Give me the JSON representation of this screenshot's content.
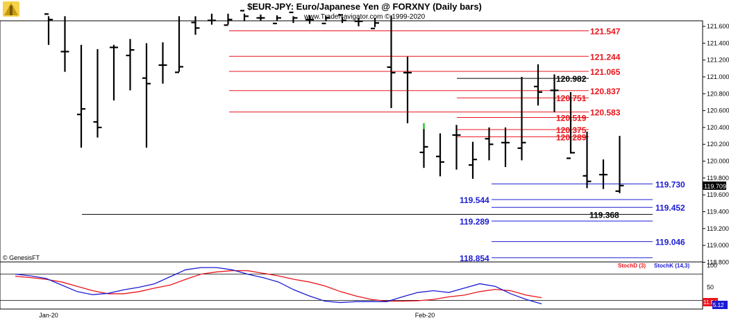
{
  "header": {
    "title": "$EUR-JPY:  Euro/Japanese Yen @ FORXNY  (Daily bars)",
    "subtitle": "www.TradeNavigator.com © 1999-2020"
  },
  "watermark": "© GenesisFT",
  "chart_data": [
    {
      "type": "ohlc",
      "title": "$EUR-JPY:  Euro/Japanese Yen @ FORXNY  (Daily bars)",
      "ylim": [
        118.854,
        121.7
      ],
      "y_ticks": [
        "121.600",
        "121.400",
        "121.200",
        "121.000",
        "120.800",
        "120.600",
        "120.400",
        "120.200",
        "120.000",
        "119.800",
        "119.600",
        "119.400",
        "119.200",
        "119.000",
        "118.800"
      ],
      "x_ticks": [
        "Jan-20",
        "Feb-20"
      ],
      "last_price": "119.709",
      "bars": [
        {
          "h": 121.72,
          "l": 121.38,
          "c": 121.68
        },
        {
          "h": 121.72,
          "l": 121.06,
          "c": 121.3
        },
        {
          "h": 121.38,
          "l": 120.16,
          "c": 120.62
        },
        {
          "h": 121.33,
          "l": 120.28,
          "c": 120.4
        },
        {
          "h": 121.38,
          "l": 120.72,
          "c": 121.35
        },
        {
          "h": 121.45,
          "l": 120.84,
          "c": 121.32
        },
        {
          "h": 121.4,
          "l": 120.16,
          "c": 120.92
        },
        {
          "h": 121.41,
          "l": 120.92,
          "c": 121.14
        },
        {
          "h": 121.72,
          "l": 121.06,
          "c": 121.12
        },
        {
          "h": 121.72,
          "l": 121.5,
          "c": 121.58
        },
        {
          "h": 121.75,
          "l": 121.62,
          "c": 121.67
        },
        {
          "h": 121.75,
          "l": 121.62,
          "c": 121.68
        },
        {
          "h": 121.75,
          "l": 121.66,
          "c": 121.72
        },
        {
          "h": 121.74,
          "l": 121.67,
          "c": 121.7
        },
        {
          "h": 121.73,
          "l": 121.67,
          "c": 121.7
        },
        {
          "h": 121.72,
          "l": 121.64,
          "c": 121.7
        },
        {
          "h": 121.73,
          "l": 121.63,
          "c": 121.68
        },
        {
          "h": 121.72,
          "l": 121.66,
          "c": 121.7
        },
        {
          "h": 121.71,
          "l": 121.64,
          "c": 121.67
        },
        {
          "h": 121.7,
          "l": 121.6,
          "c": 121.66
        },
        {
          "h": 121.7,
          "l": 121.59,
          "c": 121.64
        },
        {
          "h": 121.73,
          "l": 120.63,
          "c": 121.05
        },
        {
          "h": 121.24,
          "l": 120.45,
          "c": 121.05
        },
        {
          "h": 120.45,
          "l": 119.92,
          "c": 120.17
        },
        {
          "h": 120.33,
          "l": 119.82,
          "c": 119.99
        },
        {
          "h": 120.43,
          "l": 119.9,
          "c": 120.31
        },
        {
          "h": 120.23,
          "l": 119.79,
          "c": 120.02
        },
        {
          "h": 120.4,
          "l": 120.01,
          "c": 120.2
        },
        {
          "h": 120.4,
          "l": 119.93,
          "c": 120.22
        },
        {
          "h": 121.0,
          "l": 120.01,
          "c": 120.22
        },
        {
          "h": 121.15,
          "l": 120.66,
          "c": 120.82
        },
        {
          "h": 121.03,
          "l": 120.58,
          "c": 120.84
        },
        {
          "h": 120.82,
          "l": 120.09,
          "c": 120.1
        },
        {
          "h": 120.35,
          "l": 119.68,
          "c": 119.76
        },
        {
          "h": 120.02,
          "l": 119.67,
          "c": 119.84
        },
        {
          "h": 120.3,
          "l": 119.62,
          "c": 119.71
        }
      ],
      "special_bar": {
        "x": 23,
        "h": 120.45,
        "l": 120.38
      },
      "levels": [
        {
          "value": "121.547",
          "v": 121.547,
          "color": "#e8141b",
          "line_color": "#e8141b",
          "from": 12,
          "to": 34
        },
        {
          "value": "121.244",
          "v": 121.244,
          "color": "#e8141b",
          "line_color": "#e8141b",
          "from": 12,
          "to": 34
        },
        {
          "value": "121.065",
          "v": 121.065,
          "color": "#e8141b",
          "line_color": "#e8141b",
          "from": 12,
          "to": 34
        },
        {
          "value": "120.982",
          "v": 120.982,
          "color": "#000000",
          "line_color": "#000000",
          "from": 26,
          "to": 34
        },
        {
          "value": "120.837",
          "v": 120.837,
          "color": "#e8141b",
          "line_color": "#e8141b",
          "from": 12,
          "to": 34
        },
        {
          "value": "120.751",
          "v": 120.751,
          "color": "#e8141b",
          "line_color": "#e8141b",
          "from": 26,
          "to": 34
        },
        {
          "value": "120.583",
          "v": 120.583,
          "color": "#e8141b",
          "line_color": "#e8141b",
          "from": 12,
          "to": 34
        },
        {
          "value": "120.519",
          "v": 120.519,
          "color": "#e8141b",
          "line_color": "#e8141b",
          "from": 26,
          "to": 34
        },
        {
          "value": "120.375",
          "v": 120.375,
          "color": "#e8141b",
          "line_color": "#e8141b",
          "from": 26,
          "to": 34
        },
        {
          "value": "120.289",
          "v": 120.289,
          "color": "#e8141b",
          "line_color": "#e8141b",
          "from": 26,
          "to": 34
        },
        {
          "value": "119.730",
          "v": 119.73,
          "color": "#1b1bd4",
          "line_color": "#1b1bd4",
          "from": 28,
          "to": 37
        },
        {
          "value": "119.544",
          "v": 119.544,
          "color": "#1b1bd4",
          "line_color": "#1b1bd4",
          "from": 28,
          "to": 37
        },
        {
          "value": "119.452",
          "v": 119.452,
          "color": "#1b1bd4",
          "line_color": "#1b1bd4",
          "from": 28,
          "to": 37
        },
        {
          "value": "119.368",
          "v": 119.368,
          "color": "#000000",
          "line_color": "#000000",
          "from": 4,
          "to": 37
        },
        {
          "value": "119.289",
          "v": 119.289,
          "color": "#1b1bd4",
          "line_color": "#1b1bd4",
          "from": 28,
          "to": 37
        },
        {
          "value": "119.046",
          "v": 119.046,
          "color": "#1b1bd4",
          "line_color": "#1b1bd4",
          "from": 28,
          "to": 37
        },
        {
          "value": "118.854",
          "v": 118.854,
          "color": "#1b1bd4",
          "line_color": "#1b1bd4",
          "from": 28,
          "to": 37
        }
      ]
    },
    {
      "type": "line",
      "ylim": [
        0,
        100
      ],
      "y_ticks": [
        "100",
        "50"
      ],
      "reference_lines": [
        80,
        20
      ],
      "series": [
        {
          "name": "StochD (3)",
          "color": "#e8141b",
          "values": [
            75,
            72,
            68,
            62,
            52,
            42,
            35,
            35,
            40,
            48,
            55,
            68,
            80,
            85,
            88,
            88,
            82,
            76,
            68,
            62,
            53,
            40,
            30,
            22,
            18,
            18,
            19,
            22,
            28,
            32,
            40,
            45,
            42,
            32,
            26
          ]
        },
        {
          "name": "StochK (14,3)",
          "color": "#1b1bd4",
          "values": [
            80,
            76,
            70,
            55,
            40,
            33,
            36,
            44,
            50,
            58,
            74,
            90,
            95,
            95,
            90,
            80,
            72,
            62,
            44,
            30,
            18,
            15,
            17,
            17,
            17,
            28,
            38,
            42,
            38,
            48,
            58,
            52,
            35,
            22,
            12
          ]
        }
      ],
      "end_values": [
        "11.94",
        "5.12"
      ]
    }
  ]
}
